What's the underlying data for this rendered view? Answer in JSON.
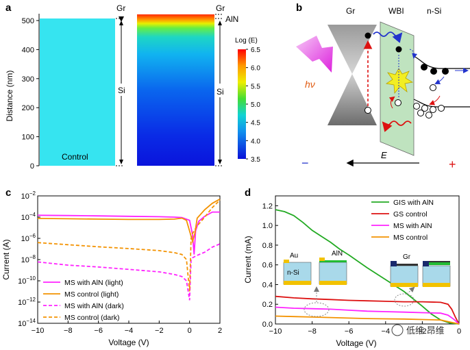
{
  "panel_labels": [
    "a",
    "b",
    "c",
    "d"
  ],
  "panel_a": {
    "ylabel": "Distance (nm)",
    "yticks": [
      "0",
      "100",
      "200",
      "300",
      "400",
      "500"
    ],
    "control_label": "Control",
    "labels": {
      "gr_left": "Gr",
      "gr_right": "Gr",
      "aln": "AlN",
      "si_left": "Si",
      "si_right": "Si"
    },
    "colorbar": {
      "title": "Log (E)",
      "ticks": [
        "6.5",
        "6.0",
        "5.5",
        "5.0",
        "4.5",
        "4.0",
        "3.5"
      ],
      "min": 3.5,
      "max": 6.5
    },
    "colors": {
      "control_fill": "#36E4F0"
    }
  },
  "panel_b": {
    "labels": {
      "gr": "Gr",
      "wbi": "WBI",
      "nsi": "n-Si",
      "hv": "hν",
      "e_field": "E",
      "minus": "−",
      "plus": "+"
    },
    "colors": {
      "wbi_fill": "#BFE3BF",
      "minus": "#2233CC",
      "plus": "#DD1111",
      "hv": "#E05A10"
    }
  },
  "chart_data": [
    {
      "type": "line",
      "panel": "c",
      "xlabel": "Voltage (V)",
      "ylabel": "Current (A)",
      "xlim": [
        -10,
        2
      ],
      "ylim_log10": [
        -14,
        -2
      ],
      "xticks": [
        "−10",
        "−8",
        "−6",
        "−4",
        "−2",
        "0",
        "2"
      ],
      "yticks": [
        "10^-14",
        "10^-12",
        "10^-10",
        "10^-8",
        "10^-6",
        "10^-4",
        "10^-2"
      ],
      "y_scale": "log",
      "legend_position": "bottom-left",
      "series": [
        {
          "name": "MS with AlN (light)",
          "color": "#FF22FF",
          "dash": "solid",
          "x": [
            -10,
            -8,
            -6,
            -4,
            -2,
            -1,
            -0.5,
            0,
            0.2,
            0.3,
            0.4,
            0.6,
            1,
            1.5,
            2
          ],
          "y": [
            0.00015,
            0.00014,
            0.00013,
            0.00012,
            0.00011,
            0.0001,
            9e-05,
            5e-05,
            2e-06,
            3e-08,
            5e-06,
            4e-05,
            0.00012,
            0.0003,
            0.0003
          ]
        },
        {
          "name": "MS control (light)",
          "color": "#F39200",
          "dash": "solid",
          "x": [
            -10,
            -8,
            -6,
            -4,
            -2,
            -1,
            -0.5,
            -0.2,
            0,
            0.2,
            0.35,
            0.5,
            1,
            1.5,
            2
          ],
          "y": [
            7.5e-05,
            7e-05,
            6.5e-05,
            6e-05,
            6e-05,
            6.5e-05,
            8e-05,
            5e-05,
            5e-06,
            5e-07,
            3e-06,
            8e-05,
            0.0005,
            0.002,
            0.005
          ]
        },
        {
          "name": "MS with AlN (dark)",
          "color": "#FF22FF",
          "dash": "dashed",
          "x": [
            -10,
            -8,
            -6,
            -4,
            -2,
            -1,
            -0.5,
            -0.2,
            0,
            0.1,
            0.2,
            0.5,
            1,
            1.5,
            2
          ],
          "y": [
            6e-09,
            3e-09,
            2e-09,
            1.2e-09,
            7e-10,
            4e-10,
            2.5e-10,
            1e-10,
            1.5e-12,
            1e-08,
            1.5e-08,
            2.5e-08,
            5e-08,
            1.5e-07,
            3e-07
          ]
        },
        {
          "name": "MS control (dark)",
          "color": "#F39200",
          "dash": "dashed",
          "x": [
            -10,
            -8,
            -6,
            -4,
            -2,
            -1,
            -0.5,
            -0.2,
            0,
            0.1,
            0.2,
            0.5,
            1,
            1.5,
            2
          ],
          "y": [
            4e-07,
            2.5e-07,
            1.6e-07,
            1.1e-07,
            7e-08,
            4.5e-08,
            3e-08,
            1e-08,
            1e-11,
            1e-06,
            3e-06,
            1.5e-05,
            0.0001,
            0.0008,
            0.004
          ]
        }
      ]
    },
    {
      "type": "line",
      "panel": "d",
      "xlabel": "Voltage (V)",
      "ylabel": "Current (mA)",
      "xlim": [
        -10,
        0
      ],
      "ylim": [
        0,
        1.3
      ],
      "xticks": [
        "−10",
        "−8",
        "−6",
        "−4",
        "−2",
        "0"
      ],
      "yticks": [
        "0.0",
        "0.2",
        "0.4",
        "0.6",
        "0.8",
        "1.0",
        "1.2"
      ],
      "legend_position": "top-right",
      "series": [
        {
          "name": "GIS with AlN",
          "color": "#22AA22",
          "x": [
            -10,
            -9.5,
            -9,
            -8.5,
            -8,
            -7.5,
            -7,
            -6.5,
            -6,
            -5,
            -4,
            -3,
            -2,
            -1.5,
            -1,
            -0.5,
            0
          ],
          "y": [
            1.16,
            1.14,
            1.1,
            1.03,
            0.95,
            0.89,
            0.83,
            0.76,
            0.7,
            0.57,
            0.45,
            0.33,
            0.18,
            0.1,
            0.04,
            0.01,
            0.0
          ]
        },
        {
          "name": "GS control",
          "color": "#DD1111",
          "x": [
            -10,
            -9,
            -8,
            -7,
            -6,
            -5,
            -4,
            -3,
            -2,
            -1,
            -0.6,
            -0.4,
            -0.2,
            0
          ],
          "y": [
            0.28,
            0.265,
            0.255,
            0.248,
            0.24,
            0.235,
            0.23,
            0.225,
            0.225,
            0.22,
            0.2,
            0.15,
            0.07,
            0.0
          ]
        },
        {
          "name": "MS with AlN",
          "color": "#FF22FF",
          "x": [
            -10,
            -9,
            -8,
            -7,
            -6,
            -5,
            -4,
            -3,
            -2,
            -1,
            -0.6,
            -0.3,
            0
          ],
          "y": [
            0.17,
            0.16,
            0.155,
            0.15,
            0.14,
            0.13,
            0.125,
            0.12,
            0.115,
            0.11,
            0.09,
            0.05,
            0.0
          ]
        },
        {
          "name": "MS control",
          "color": "#F39200",
          "x": [
            -10,
            -9,
            -8,
            -7,
            -6,
            -5,
            -4,
            -3,
            -2,
            -1,
            -0.5,
            0
          ],
          "y": [
            0.08,
            0.075,
            0.07,
            0.065,
            0.06,
            0.055,
            0.052,
            0.05,
            0.045,
            0.04,
            0.02,
            0.0
          ]
        }
      ],
      "insets": {
        "au": "Au",
        "nsi": "n-Si",
        "aln": "AlN",
        "gr": "Gr"
      }
    }
  ],
  "watermark": "低维 昂维"
}
